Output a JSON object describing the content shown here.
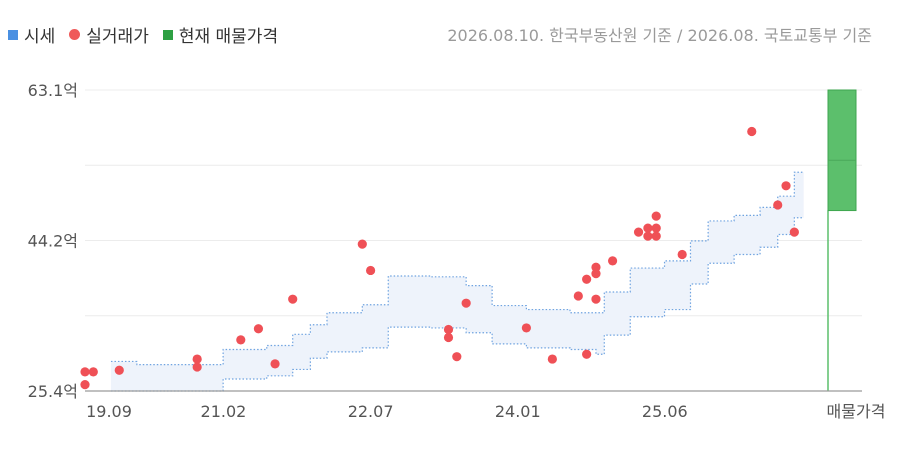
{
  "legend": {
    "items": [
      {
        "label": "시세",
        "color": "#4a90e2",
        "shape": "square"
      },
      {
        "label": "실거래가",
        "color": "#ef5a5a",
        "shape": "circle"
      },
      {
        "label": "현재 매물가격",
        "color": "#2ea043",
        "shape": "square"
      }
    ]
  },
  "source_note": "2026.08.10. 한국부동산원 기준 / 2026.08. 국토교통부 기준",
  "chart_data": {
    "type": "scatter",
    "x_ticks": [
      "19.09",
      "21.02",
      "22.07",
      "24.01",
      "25.06",
      "매물가격"
    ],
    "y_ticks": [
      "63.1억",
      "44.2억",
      "25.4억"
    ],
    "ylim": [
      25.4,
      63.1
    ],
    "grid": true,
    "series": [
      {
        "name": "실거래가",
        "type": "scatter",
        "points": [
          {
            "x": 2019.75,
            "y": 27.8
          },
          {
            "x": 2019.75,
            "y": 26.2
          },
          {
            "x": 2019.83,
            "y": 27.8
          },
          {
            "x": 2020.08,
            "y": 28.0
          },
          {
            "x": 2020.83,
            "y": 28.4
          },
          {
            "x": 2020.83,
            "y": 29.4
          },
          {
            "x": 2021.25,
            "y": 31.8
          },
          {
            "x": 2021.42,
            "y": 33.2
          },
          {
            "x": 2021.58,
            "y": 28.8
          },
          {
            "x": 2021.75,
            "y": 36.9
          },
          {
            "x": 2022.42,
            "y": 43.8
          },
          {
            "x": 2022.5,
            "y": 40.5
          },
          {
            "x": 2023.25,
            "y": 33.1
          },
          {
            "x": 2023.25,
            "y": 32.1
          },
          {
            "x": 2023.33,
            "y": 29.7
          },
          {
            "x": 2023.42,
            "y": 36.4
          },
          {
            "x": 2024.0,
            "y": 33.3
          },
          {
            "x": 2024.25,
            "y": 29.4
          },
          {
            "x": 2024.5,
            "y": 37.3
          },
          {
            "x": 2024.58,
            "y": 39.4
          },
          {
            "x": 2024.58,
            "y": 30.0
          },
          {
            "x": 2024.67,
            "y": 40.1
          },
          {
            "x": 2024.67,
            "y": 40.9
          },
          {
            "x": 2024.67,
            "y": 36.9
          },
          {
            "x": 2024.83,
            "y": 41.7
          },
          {
            "x": 2025.08,
            "y": 45.3
          },
          {
            "x": 2025.17,
            "y": 45.8
          },
          {
            "x": 2025.17,
            "y": 44.8
          },
          {
            "x": 2025.25,
            "y": 45.8
          },
          {
            "x": 2025.25,
            "y": 44.8
          },
          {
            "x": 2025.25,
            "y": 47.3
          },
          {
            "x": 2025.5,
            "y": 42.5
          },
          {
            "x": 2026.17,
            "y": 57.9
          },
          {
            "x": 2026.42,
            "y": 48.7
          },
          {
            "x": 2026.5,
            "y": 51.1
          },
          {
            "x": 2026.58,
            "y": 45.3
          }
        ]
      },
      {
        "name": "시세",
        "type": "step-band",
        "points": [
          {
            "x": 2020.0,
            "low": 25.4,
            "high": 29.1
          },
          {
            "x": 2020.25,
            "low": 25.4,
            "high": 28.7
          },
          {
            "x": 2021.0,
            "low": 25.4,
            "high": 28.7
          },
          {
            "x": 2021.08,
            "low": 26.9,
            "high": 30.6
          },
          {
            "x": 2021.5,
            "low": 27.3,
            "high": 31.1
          },
          {
            "x": 2021.75,
            "low": 28.1,
            "high": 32.5
          },
          {
            "x": 2021.92,
            "low": 29.5,
            "high": 33.7
          },
          {
            "x": 2022.08,
            "low": 30.3,
            "high": 35.2
          },
          {
            "x": 2022.42,
            "low": 30.8,
            "high": 36.2
          },
          {
            "x": 2022.67,
            "low": 33.4,
            "high": 39.8
          },
          {
            "x": 2023.08,
            "low": 33.3,
            "high": 39.7
          },
          {
            "x": 2023.42,
            "low": 32.7,
            "high": 38.6
          },
          {
            "x": 2023.67,
            "low": 31.3,
            "high": 36.1
          },
          {
            "x": 2024.0,
            "low": 30.8,
            "high": 35.6
          },
          {
            "x": 2024.42,
            "low": 30.6,
            "high": 35.2
          },
          {
            "x": 2024.67,
            "low": 30.0,
            "high": 35.2
          },
          {
            "x": 2024.75,
            "low": 32.4,
            "high": 37.8
          },
          {
            "x": 2025.0,
            "low": 34.7,
            "high": 40.8
          },
          {
            "x": 2025.33,
            "low": 35.6,
            "high": 41.7
          },
          {
            "x": 2025.58,
            "low": 38.8,
            "high": 44.2
          },
          {
            "x": 2025.75,
            "low": 41.4,
            "high": 46.7
          },
          {
            "x": 2026.0,
            "low": 42.5,
            "high": 47.4
          },
          {
            "x": 2026.25,
            "low": 43.4,
            "high": 48.4
          },
          {
            "x": 2026.42,
            "low": 45.0,
            "high": 49.8
          },
          {
            "x": 2026.58,
            "low": 47.1,
            "high": 52.8
          },
          {
            "x": 2026.67,
            "low": 47.1,
            "high": 52.8
          }
        ]
      },
      {
        "name": "현재 매물가격",
        "type": "range-bar",
        "category": "매물가격",
        "low": 48.0,
        "high": 63.1
      }
    ]
  }
}
